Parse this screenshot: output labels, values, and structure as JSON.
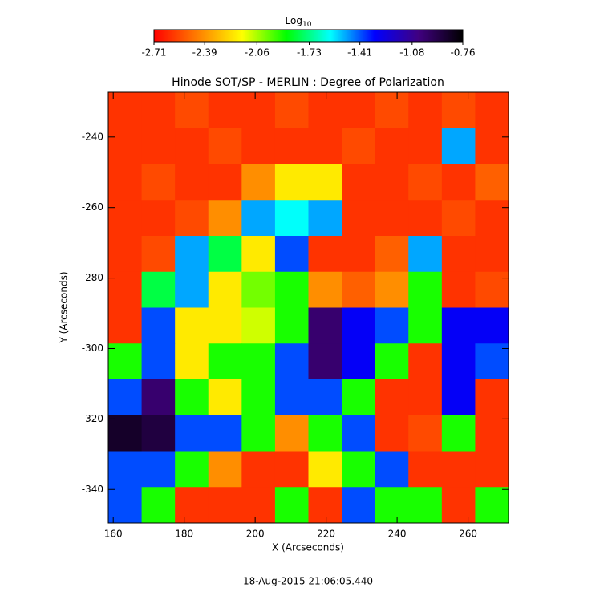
{
  "chart_data": {
    "type": "heatmap",
    "title": "Hinode SOT/SP - MERLIN : Degree of Polarization",
    "x_label": "X (Arcseconds)",
    "y_label": "Y (Arcseconds)",
    "footer": "18-Aug-2015 21:06:05.440",
    "colorbar_label": "Log",
    "colorbar_label_sub": "10",
    "colormap": [
      "#ff0000",
      "#ff8000",
      "#ffff00",
      "#00ff00",
      "#00ffff",
      "#0000ff",
      "#400080",
      "#000000"
    ],
    "zlim": [
      -2.71,
      -0.76
    ],
    "zticks": [
      -2.71,
      -2.39,
      -2.06,
      -1.73,
      -1.41,
      -1.08,
      -0.76
    ],
    "xlim": [
      158.6,
      271.4
    ],
    "ylim": [
      -349.5,
      -227.3
    ],
    "xticks": [
      160,
      180,
      200,
      220,
      240,
      260
    ],
    "yticks": [
      -240,
      -260,
      -280,
      -300,
      -320,
      -340
    ],
    "z": [
      [
        -2.6,
        -2.6,
        -2.55,
        -2.6,
        -2.6,
        -2.55,
        -2.6,
        -2.6,
        -2.55,
        -2.6,
        -2.55,
        -2.6
      ],
      [
        -2.6,
        -2.6,
        -2.6,
        -2.55,
        -2.6,
        -2.6,
        -2.6,
        -2.55,
        -2.6,
        -2.6,
        -1.5,
        -2.6
      ],
      [
        -2.6,
        -2.55,
        -2.6,
        -2.6,
        -2.4,
        -2.2,
        -2.2,
        -2.6,
        -2.6,
        -2.55,
        -2.6,
        -2.5
      ],
      [
        -2.6,
        -2.6,
        -2.55,
        -2.4,
        -1.5,
        -1.6,
        -1.5,
        -2.6,
        -2.6,
        -2.6,
        -2.55,
        -2.6
      ],
      [
        -2.6,
        -2.55,
        -1.5,
        -1.8,
        -2.2,
        -1.4,
        -2.6,
        -2.6,
        -2.5,
        -1.5,
        -2.6,
        -2.6
      ],
      [
        -2.6,
        -1.8,
        -1.5,
        -2.2,
        -2.0,
        -1.9,
        -2.4,
        -2.5,
        -2.4,
        -1.9,
        -2.6,
        -2.55
      ],
      [
        -2.6,
        -1.4,
        -2.2,
        -2.2,
        -2.1,
        -1.9,
        -1.0,
        -1.3,
        -1.4,
        -1.9,
        -1.3,
        -1.3
      ],
      [
        -1.9,
        -1.4,
        -2.2,
        -1.9,
        -1.9,
        -1.4,
        -1.0,
        -1.3,
        -1.9,
        -2.6,
        -1.3,
        -1.4
      ],
      [
        -1.4,
        -1.0,
        -1.9,
        -2.2,
        -1.9,
        -1.4,
        -1.4,
        -1.9,
        -2.6,
        -2.6,
        -1.3,
        -2.6
      ],
      [
        -0.85,
        -0.9,
        -1.4,
        -1.4,
        -1.9,
        -2.4,
        -1.9,
        -1.4,
        -2.6,
        -2.55,
        -1.9,
        -2.6
      ],
      [
        -1.4,
        -1.4,
        -1.9,
        -2.4,
        -2.6,
        -2.6,
        -2.2,
        -1.9,
        -1.4,
        -2.6,
        -2.6,
        -2.6
      ],
      [
        -1.4,
        -1.9,
        -2.6,
        -2.6,
        -2.6,
        -1.9,
        -2.6,
        -1.4,
        -1.9,
        -1.9,
        -2.6,
        -1.9
      ]
    ]
  }
}
